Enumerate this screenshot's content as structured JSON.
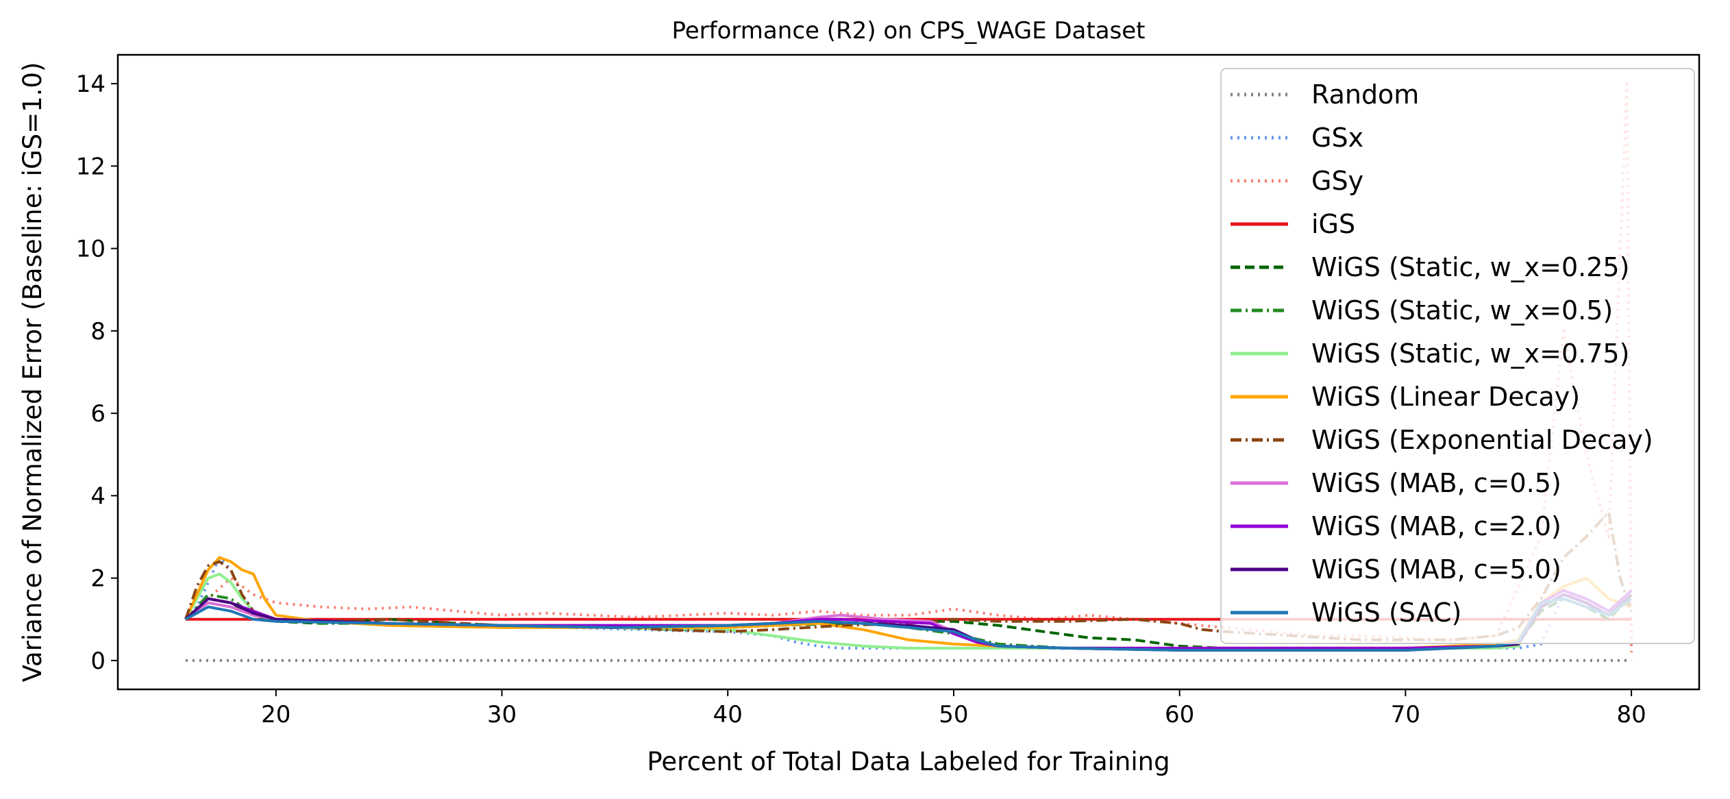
{
  "chart_data": {
    "type": "line",
    "title": "Performance (R2) on CPS_WAGE Dataset",
    "xlabel": "Percent of Total Data Labeled for Training",
    "ylabel": "Variance of Normalized Error (Baseline: iGS=1.0)",
    "xlim": [
      13,
      83
    ],
    "ylim": [
      -0.7,
      14.7
    ],
    "xticks": [
      20,
      30,
      40,
      50,
      60,
      70,
      80
    ],
    "yticks": [
      0,
      2,
      4,
      6,
      8,
      10,
      12,
      14
    ],
    "grid": false,
    "legend_position": "top-right",
    "series": [
      {
        "name": "Random",
        "color": "#808080",
        "style": "dotted",
        "x": [
          16,
          20,
          30,
          40,
          50,
          60,
          70,
          80
        ],
        "y": [
          0,
          0,
          0,
          0,
          0,
          0,
          0,
          0
        ]
      },
      {
        "name": "GSx",
        "color": "#6495ED",
        "style": "dotted",
        "x": [
          16,
          16.5,
          17,
          17.5,
          18,
          18.5,
          19,
          20,
          22,
          25,
          28,
          30,
          33,
          36,
          38,
          40,
          42,
          43,
          44,
          45,
          47,
          50,
          55,
          60,
          65,
          70,
          73,
          75,
          76,
          77,
          78,
          79,
          80
        ],
        "y": [
          1.0,
          1.3,
          1.9,
          2.5,
          2.2,
          1.6,
          1.2,
          1.0,
          0.95,
          0.9,
          0.85,
          0.82,
          0.8,
          0.75,
          0.72,
          0.7,
          0.6,
          0.45,
          0.35,
          0.3,
          0.3,
          0.3,
          0.3,
          0.3,
          0.3,
          0.3,
          0.3,
          0.3,
          0.4,
          1.6,
          1.5,
          1.2,
          1.7
        ]
      },
      {
        "name": "GSy",
        "color": "#FA8072",
        "style": "dotted",
        "x": [
          16,
          17,
          18,
          19,
          20,
          21,
          22,
          24,
          26,
          28,
          30,
          32,
          34,
          36,
          38,
          40,
          42,
          44,
          46,
          48,
          50,
          52,
          54,
          56,
          58,
          60,
          62,
          64,
          66,
          68,
          70,
          72,
          74,
          76,
          77,
          78,
          79,
          79.8,
          80
        ],
        "y": [
          1.0,
          1.5,
          2.0,
          1.6,
          1.4,
          1.35,
          1.3,
          1.25,
          1.3,
          1.2,
          1.1,
          1.15,
          1.1,
          1.05,
          1.1,
          1.15,
          1.1,
          1.2,
          1.1,
          1.1,
          1.25,
          1.1,
          1.0,
          1.1,
          1.0,
          0.9,
          0.8,
          0.7,
          0.6,
          0.6,
          0.55,
          0.5,
          0.6,
          3.0,
          8.0,
          5.0,
          3.0,
          14.0,
          0.2
        ]
      },
      {
        "name": "iGS",
        "color": "#E8141A",
        "style": "solid",
        "x": [
          16,
          80
        ],
        "y": [
          1.0,
          1.0
        ]
      },
      {
        "name": "WiGS (Static, w_x=0.25)",
        "color": "#006400",
        "style": "dashed",
        "x": [
          16,
          17,
          18,
          19,
          20,
          22,
          25,
          28,
          30,
          35,
          38,
          40,
          42,
          45,
          48,
          50,
          52,
          54,
          56,
          58,
          60,
          62,
          64,
          66,
          68,
          70,
          72,
          74,
          75,
          76,
          77,
          78,
          79,
          80
        ],
        "y": [
          1.0,
          1.5,
          1.4,
          1.1,
          0.95,
          0.9,
          1.0,
          0.9,
          0.85,
          0.8,
          0.75,
          0.8,
          0.85,
          0.9,
          0.95,
          0.95,
          0.85,
          0.7,
          0.55,
          0.5,
          0.35,
          0.3,
          0.3,
          0.3,
          0.3,
          0.3,
          0.3,
          0.35,
          0.4,
          1.2,
          1.5,
          1.3,
          1.0,
          1.6
        ]
      },
      {
        "name": "WiGS (Static, w_x=0.5)",
        "color": "#228B22",
        "style": "dashdot",
        "x": [
          16,
          17,
          18,
          19,
          20,
          22,
          25,
          30,
          35,
          40,
          44,
          46,
          48,
          50,
          52,
          55,
          60,
          65,
          70,
          74,
          75,
          76,
          77,
          78,
          79,
          80
        ],
        "y": [
          1.0,
          1.6,
          1.5,
          1.1,
          1.0,
          0.9,
          0.9,
          0.85,
          0.8,
          0.8,
          0.9,
          0.9,
          0.8,
          0.65,
          0.4,
          0.3,
          0.3,
          0.3,
          0.3,
          0.35,
          0.4,
          1.3,
          1.6,
          1.4,
          1.1,
          1.7
        ]
      },
      {
        "name": "WiGS (Static, w_x=0.75)",
        "color": "#90EE90",
        "style": "solid",
        "x": [
          16,
          16.5,
          17,
          17.5,
          18,
          18.5,
          19,
          20,
          22,
          25,
          30,
          35,
          40,
          42,
          44,
          46,
          48,
          50,
          55,
          60,
          65,
          70,
          74,
          75,
          76,
          77,
          78,
          79,
          80
        ],
        "y": [
          1.0,
          1.5,
          2.0,
          2.1,
          1.9,
          1.5,
          1.2,
          1.0,
          0.95,
          0.9,
          0.85,
          0.8,
          0.75,
          0.6,
          0.45,
          0.35,
          0.3,
          0.3,
          0.3,
          0.3,
          0.3,
          0.3,
          0.3,
          0.35,
          1.4,
          1.7,
          1.5,
          1.2,
          1.6
        ]
      },
      {
        "name": "WiGS (Linear Decay)",
        "color": "#FFA500",
        "style": "solid",
        "x": [
          16,
          16.5,
          17,
          17.5,
          18,
          18.5,
          19,
          19.5,
          20,
          22,
          25,
          30,
          35,
          40,
          42,
          44,
          46,
          48,
          50,
          52,
          55,
          60,
          65,
          70,
          72,
          74,
          75,
          76,
          77,
          78,
          79,
          80
        ],
        "y": [
          1.0,
          1.6,
          2.2,
          2.5,
          2.4,
          2.2,
          2.1,
          1.5,
          1.1,
          0.95,
          0.85,
          0.8,
          0.8,
          0.8,
          0.85,
          0.9,
          0.75,
          0.5,
          0.4,
          0.35,
          0.3,
          0.3,
          0.3,
          0.3,
          0.35,
          0.4,
          0.5,
          1.4,
          1.8,
          2.0,
          1.5,
          1.3
        ]
      },
      {
        "name": "WiGS (Exponential Decay)",
        "color": "#8B4513",
        "style": "dashdot",
        "x": [
          16,
          16.5,
          17,
          17.5,
          18,
          18.5,
          19,
          20,
          22,
          25,
          30,
          35,
          37,
          40,
          42,
          45,
          48,
          50,
          52,
          55,
          58,
          60,
          61,
          62,
          65,
          68,
          70,
          72,
          74,
          75,
          76,
          77,
          78,
          79,
          79.5,
          80
        ],
        "y": [
          1.0,
          1.8,
          2.3,
          2.4,
          2.2,
          1.6,
          1.2,
          1.0,
          0.95,
          1.0,
          0.85,
          0.85,
          0.75,
          0.7,
          0.75,
          0.85,
          0.9,
          1.0,
          0.95,
          0.95,
          1.0,
          0.9,
          0.75,
          0.7,
          0.6,
          0.5,
          0.5,
          0.5,
          0.6,
          0.8,
          1.5,
          2.5,
          3.0,
          3.6,
          2.0,
          1.2
        ]
      },
      {
        "name": "WiGS (MAB, c=0.5)",
        "color": "#DA70D6",
        "style": "solid",
        "x": [
          16,
          17,
          18,
          19,
          20,
          25,
          30,
          35,
          40,
          42,
          44,
          45,
          47,
          49,
          50,
          51,
          52,
          55,
          60,
          65,
          70,
          74,
          75,
          76,
          77,
          78,
          79,
          80
        ],
        "y": [
          1.0,
          1.4,
          1.3,
          1.1,
          1.0,
          0.9,
          0.85,
          0.85,
          0.85,
          0.9,
          1.05,
          1.1,
          1.0,
          0.95,
          0.7,
          0.5,
          0.35,
          0.3,
          0.3,
          0.3,
          0.3,
          0.35,
          0.4,
          1.3,
          1.6,
          1.5,
          1.2,
          1.7
        ]
      },
      {
        "name": "WiGS (MAB, c=2.0)",
        "color": "#9400D3",
        "style": "solid",
        "x": [
          16,
          17,
          18,
          19,
          20,
          25,
          30,
          35,
          40,
          42,
          44,
          45,
          47,
          49,
          50,
          51,
          52,
          55,
          60,
          65,
          70,
          74,
          75,
          76,
          77,
          78,
          79,
          80
        ],
        "y": [
          1.0,
          1.5,
          1.4,
          1.2,
          1.0,
          0.9,
          0.85,
          0.85,
          0.85,
          0.9,
          1.0,
          1.0,
          0.95,
          0.9,
          0.65,
          0.45,
          0.35,
          0.3,
          0.3,
          0.3,
          0.3,
          0.35,
          0.45,
          1.4,
          1.7,
          1.5,
          1.2,
          1.7
        ]
      },
      {
        "name": "WiGS (MAB, c=5.0)",
        "color": "#4B0082",
        "style": "solid",
        "x": [
          16,
          17,
          18,
          19,
          20,
          25,
          30,
          35,
          40,
          42,
          44,
          46,
          48,
          50,
          51,
          52,
          55,
          60,
          65,
          70,
          74,
          75,
          76,
          77,
          78,
          79,
          80
        ],
        "y": [
          1.0,
          1.5,
          1.4,
          1.15,
          1.0,
          0.9,
          0.85,
          0.8,
          0.85,
          0.9,
          0.95,
          0.9,
          0.85,
          0.75,
          0.5,
          0.35,
          0.3,
          0.25,
          0.25,
          0.25,
          0.35,
          0.4,
          1.3,
          1.6,
          1.4,
          1.1,
          1.6
        ]
      },
      {
        "name": "WiGS (SAC)",
        "color": "#1F77B4",
        "style": "solid",
        "x": [
          16,
          17,
          18,
          19,
          20,
          25,
          30,
          35,
          40,
          42,
          44,
          46,
          48,
          50,
          51,
          52,
          55,
          60,
          65,
          70,
          74,
          75,
          76,
          77,
          78,
          79,
          80
        ],
        "y": [
          1.0,
          1.3,
          1.2,
          1.0,
          0.95,
          0.9,
          0.85,
          0.8,
          0.85,
          0.9,
          0.95,
          0.9,
          0.8,
          0.7,
          0.5,
          0.35,
          0.3,
          0.25,
          0.25,
          0.25,
          0.35,
          0.45,
          1.4,
          1.5,
          1.3,
          1.1,
          1.5
        ]
      }
    ]
  }
}
